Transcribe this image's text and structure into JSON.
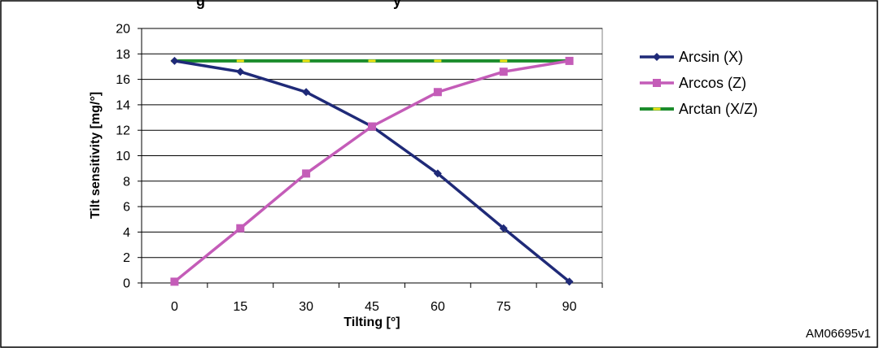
{
  "figure": {
    "title_fragment": "g",
    "title_fragment2": "y",
    "code": "AM06695v1"
  },
  "chart_data": {
    "type": "line",
    "categories": [
      "0",
      "15",
      "30",
      "45",
      "60",
      "75",
      "90"
    ],
    "x": [
      0,
      15,
      30,
      45,
      60,
      75,
      90
    ],
    "xlabel": "Tilting [°]",
    "ylabel": "Tilt sensitivity [mg/°]",
    "ylim": [
      0,
      20
    ],
    "yticks": [
      0,
      2,
      4,
      6,
      8,
      10,
      12,
      14,
      16,
      18,
      20
    ],
    "grid": "horizontal",
    "legend": "right",
    "series": [
      {
        "name": "Arcsin (X)",
        "color": "#1f2a78",
        "marker": "diamond",
        "values": [
          17.45,
          16.6,
          15.0,
          12.3,
          8.6,
          4.3,
          0.1
        ]
      },
      {
        "name": "Arccos (Z)",
        "color": "#c45cb8",
        "marker": "square",
        "values": [
          0.1,
          4.3,
          8.6,
          12.3,
          15.0,
          16.6,
          17.45
        ]
      },
      {
        "name": "Arctan (X/Z)",
        "color": "#1c8c2c",
        "marker": "dash",
        "marker_color": "#f2e617",
        "values": [
          17.45,
          17.45,
          17.45,
          17.45,
          17.45,
          17.45,
          17.45
        ]
      }
    ]
  }
}
